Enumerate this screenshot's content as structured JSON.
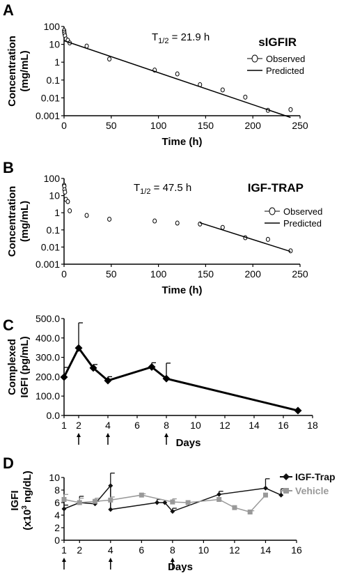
{
  "chart_data": [
    {
      "panel": "A",
      "type": "scatter",
      "title": "sIGFIR",
      "annotation": "21.9 h",
      "annotation_prefix": "T",
      "annotation_sub": "1/2",
      "xlabel": "Time (h)",
      "ylabel_lines": [
        "Concentration",
        "(mg/mL)"
      ],
      "yscale": "log",
      "xlim": [
        0,
        250
      ],
      "ylim": [
        0.001,
        100
      ],
      "xticks": [
        0,
        50,
        100,
        150,
        200,
        250
      ],
      "yticks": [
        0.001,
        0.01,
        0.1,
        1,
        10,
        100
      ],
      "ytick_labels": [
        "0.001",
        "0.01",
        "0.1",
        "1",
        "10",
        "100"
      ],
      "legend": [
        "Observed",
        "Predicted"
      ],
      "series": [
        {
          "name": "Observed",
          "kind": "points",
          "x": [
            0.1,
            0.25,
            0.5,
            1,
            2,
            4,
            6,
            24,
            48,
            96,
            120,
            144,
            168,
            192,
            216,
            240
          ],
          "y": [
            60,
            48,
            38,
            30,
            20,
            17,
            12,
            8,
            1.5,
            0.36,
            0.22,
            0.055,
            0.028,
            0.011,
            0.002,
            0.0022
          ]
        },
        {
          "name": "Predicted",
          "kind": "line",
          "x": [
            0,
            240
          ],
          "y": [
            16,
            0.0008
          ]
        }
      ]
    },
    {
      "panel": "B",
      "type": "scatter",
      "title": "IGF-TRAP",
      "annotation": "47.5 h",
      "annotation_prefix": "T",
      "annotation_sub": "1/2",
      "xlabel": "Time (h)",
      "ylabel_lines": [
        "Concentration",
        "(mg/mL)"
      ],
      "yscale": "log",
      "xlim": [
        0,
        250
      ],
      "ylim": [
        0.001,
        100
      ],
      "xticks": [
        0,
        50,
        100,
        150,
        200,
        250
      ],
      "yticks": [
        0.001,
        0.01,
        0.1,
        1,
        10,
        100
      ],
      "ytick_labels": [
        "0.001",
        "0.01",
        "0.1",
        "1",
        "10",
        "100"
      ],
      "legend": [
        "Observed",
        "Predicted"
      ],
      "series": [
        {
          "name": "Observed",
          "kind": "points",
          "x": [
            0.1,
            0.25,
            0.5,
            1,
            2,
            4,
            6,
            24,
            48,
            96,
            120,
            144,
            168,
            192,
            216,
            240
          ],
          "y": [
            40,
            35,
            22,
            16,
            6,
            4.5,
            1.3,
            0.7,
            0.42,
            0.33,
            0.25,
            0.22,
            0.14,
            0.035,
            0.028,
            0.006
          ]
        },
        {
          "name": "Predicted",
          "kind": "line",
          "x": [
            144,
            240
          ],
          "y": [
            0.26,
            0.0055
          ]
        }
      ]
    },
    {
      "panel": "C",
      "type": "line",
      "xlabel": "Days",
      "ylabel_lines": [
        "Complexed",
        "IGFI (pg/mL)"
      ],
      "xlim": [
        1,
        18
      ],
      "ylim": [
        0,
        500
      ],
      "xticks": [
        1,
        2,
        4,
        6,
        8,
        10,
        12,
        14,
        16,
        18
      ],
      "yticks": [
        0,
        100,
        200,
        300,
        400,
        500
      ],
      "ytick_labels": [
        "0.0",
        "100.0",
        "200.0",
        "300.0",
        "400.0",
        "500.0"
      ],
      "arrows_at": [
        2,
        4,
        8
      ],
      "series": [
        {
          "x": [
            1,
            2,
            3,
            4,
            7,
            8,
            17
          ],
          "y": [
            198,
            348,
            245,
            180,
            250,
            190,
            25
          ],
          "err": [
            50,
            130,
            18,
            20,
            22,
            80,
            0
          ]
        }
      ]
    },
    {
      "panel": "D",
      "type": "line",
      "xlabel": "Days",
      "ylabel_lines": [
        "IGFI",
        "(x10",
        "3",
        " ng/dL)"
      ],
      "xlim": [
        1,
        16
      ],
      "ylim": [
        0,
        10
      ],
      "xticks": [
        1,
        2,
        4,
        6,
        8,
        10,
        12,
        14,
        16
      ],
      "yticks": [
        0,
        2,
        4,
        6,
        8,
        10
      ],
      "ytick_labels": [
        "0",
        "2",
        "4",
        "6",
        "8",
        "10"
      ],
      "arrows_at": [
        1,
        4,
        8
      ],
      "series": [
        {
          "name": "IGF-Trap",
          "color": "#111111",
          "marker": "diamond",
          "x": [
            1,
            2,
            3,
            4,
            4,
            7,
            7.5,
            8,
            11,
            14,
            15
          ],
          "y": [
            5.0,
            6.0,
            5.8,
            8.7,
            4.9,
            6.0,
            6.0,
            4.6,
            7.3,
            8.3,
            7.2
          ],
          "err": [
            0.6,
            1.0,
            0.4,
            2.0,
            0,
            0.5,
            0,
            0.5,
            0.5,
            1.5,
            1.0
          ]
        },
        {
          "name": "Vehicle",
          "color": "#999999",
          "marker": "square",
          "x": [
            1,
            2,
            3,
            4,
            6,
            8,
            9,
            11,
            12,
            13,
            14
          ],
          "y": [
            6.5,
            6.0,
            6.2,
            6.4,
            7.2,
            6.1,
            6.0,
            6.5,
            5.2,
            4.5,
            7.2
          ],
          "err": [
            0.8,
            0.7,
            0.5,
            0.5,
            0.2,
            0.5,
            0,
            0,
            0,
            0.2,
            0
          ]
        }
      ]
    }
  ]
}
